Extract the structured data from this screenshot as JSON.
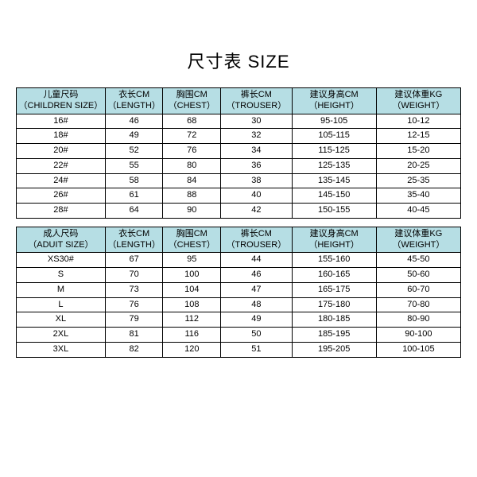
{
  "title": "尺寸表 SIZE",
  "colors": {
    "header_bg": "#b6dee4",
    "border": "#000000",
    "bg": "#ffffff",
    "text": "#000000"
  },
  "children": {
    "columns": [
      {
        "cn": "儿童尺码",
        "en": "（CHILDREN SIZE）"
      },
      {
        "cn": "衣长CM",
        "en": "（LENGTH）"
      },
      {
        "cn": "胸围CM",
        "en": "（CHEST）"
      },
      {
        "cn": "裤长CM",
        "en": "（TROUSER）"
      },
      {
        "cn": "建议身高CM",
        "en": "（HEIGHT）"
      },
      {
        "cn": "建议体重KG",
        "en": "（WEIGHT）"
      }
    ],
    "rows": [
      [
        "16#",
        "46",
        "68",
        "30",
        "95-105",
        "10-12"
      ],
      [
        "18#",
        "49",
        "72",
        "32",
        "105-115",
        "12-15"
      ],
      [
        "20#",
        "52",
        "76",
        "34",
        "115-125",
        "15-20"
      ],
      [
        "22#",
        "55",
        "80",
        "36",
        "125-135",
        "20-25"
      ],
      [
        "24#",
        "58",
        "84",
        "38",
        "135-145",
        "25-35"
      ],
      [
        "26#",
        "61",
        "88",
        "40",
        "145-150",
        "35-40"
      ],
      [
        "28#",
        "64",
        "90",
        "42",
        "150-155",
        "40-45"
      ]
    ]
  },
  "adult": {
    "columns": [
      {
        "cn": "成人尺码",
        "en": "（ADUIT SIZE）"
      },
      {
        "cn": "衣长CM",
        "en": "（LENGTH）"
      },
      {
        "cn": "胸围CM",
        "en": "（CHEST）"
      },
      {
        "cn": "裤长CM",
        "en": "（TROUSER）"
      },
      {
        "cn": "建议身高CM",
        "en": "（HEIGHT）"
      },
      {
        "cn": "建议体重KG",
        "en": "（WEIGHT）"
      }
    ],
    "rows": [
      [
        "XS30#",
        "67",
        "95",
        "44",
        "155-160",
        "45-50"
      ],
      [
        "S",
        "70",
        "100",
        "46",
        "160-165",
        "50-60"
      ],
      [
        "M",
        "73",
        "104",
        "47",
        "165-175",
        "60-70"
      ],
      [
        "L",
        "76",
        "108",
        "48",
        "175-180",
        "70-80"
      ],
      [
        "XL",
        "79",
        "112",
        "49",
        "180-185",
        "80-90"
      ],
      [
        "2XL",
        "81",
        "116",
        "50",
        "185-195",
        "90-100"
      ],
      [
        "3XL",
        "82",
        "120",
        "51",
        "195-205",
        "100-105"
      ]
    ]
  }
}
